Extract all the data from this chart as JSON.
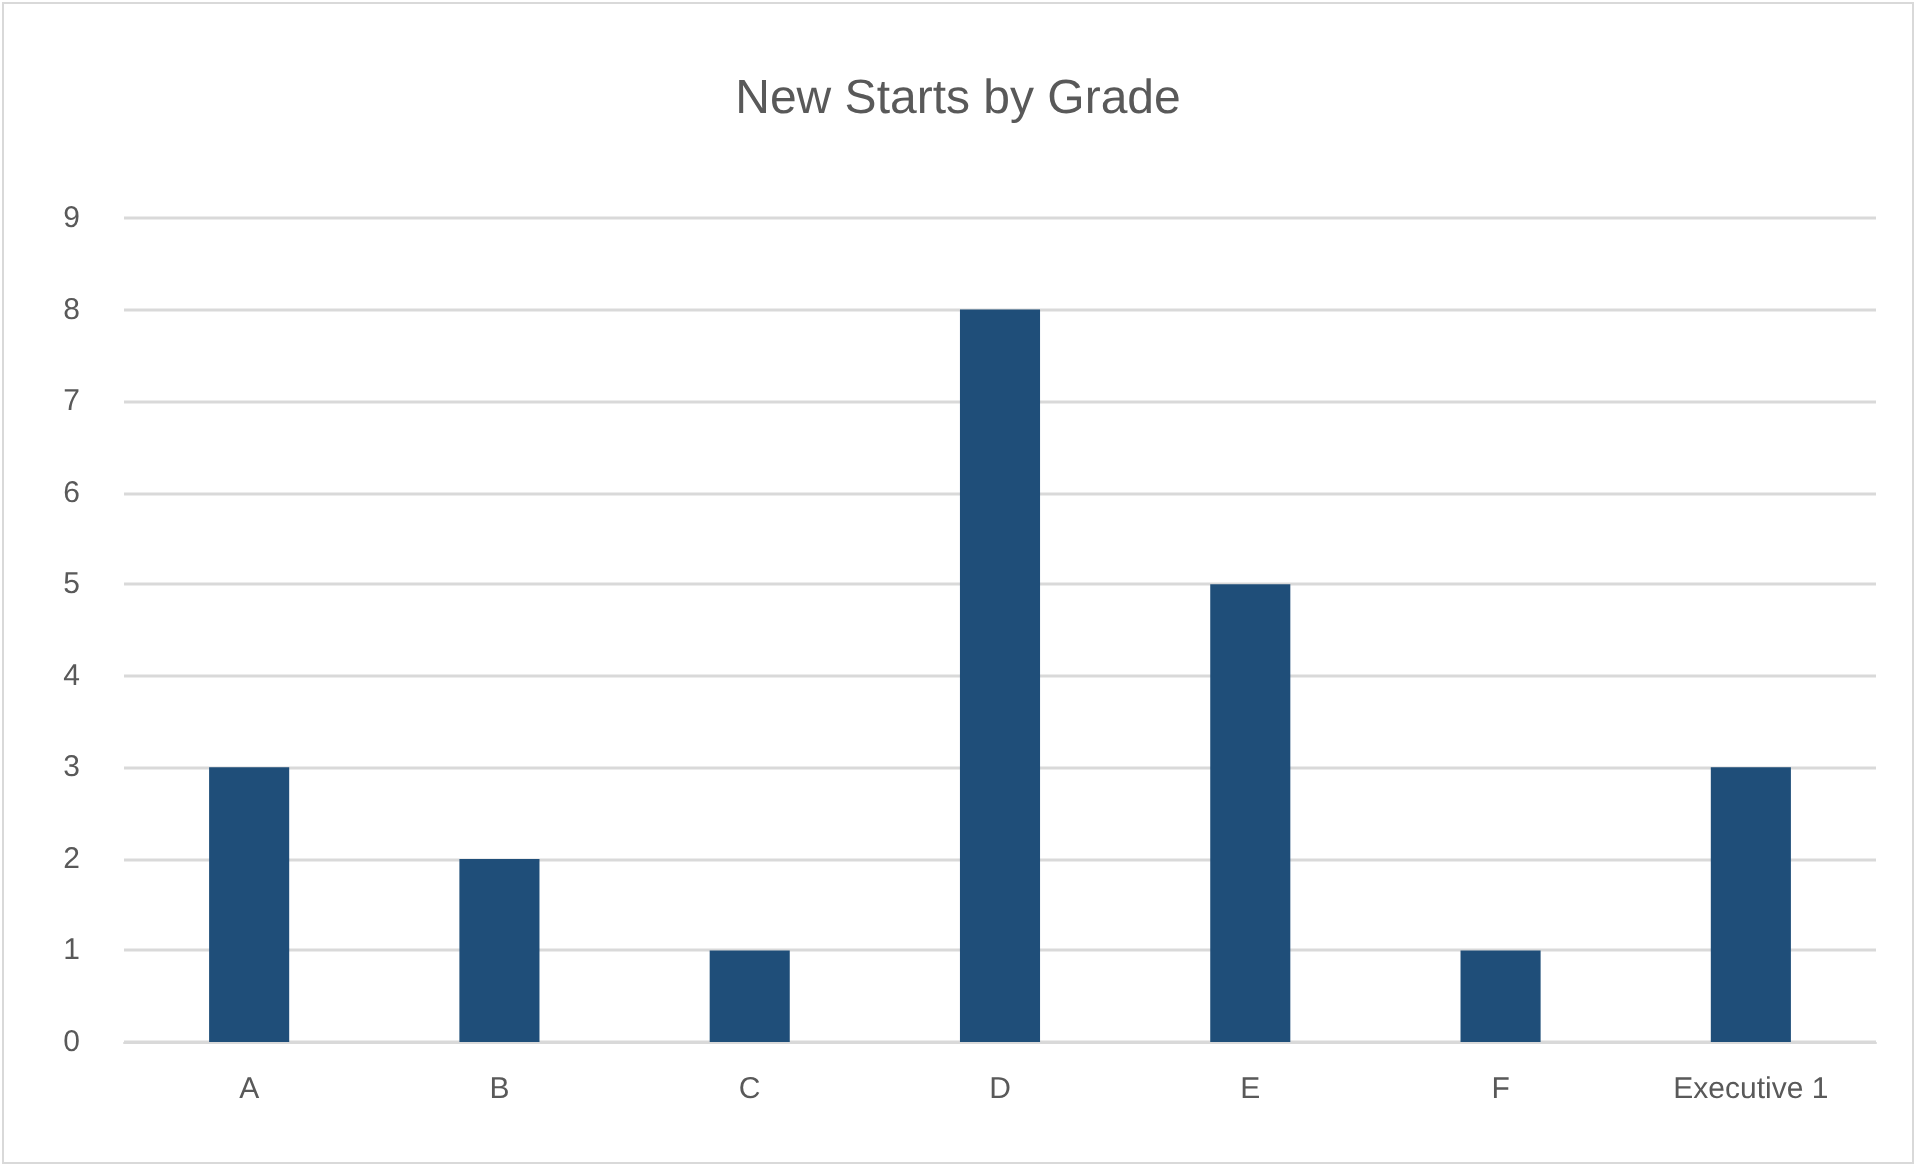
{
  "chart_data": {
    "type": "bar",
    "title": "New Starts by Grade",
    "categories": [
      "A",
      "B",
      "C",
      "D",
      "E",
      "F",
      "Executive 1"
    ],
    "values": [
      3,
      2,
      1,
      8,
      5,
      1,
      3
    ],
    "color": "#1f4e79",
    "ylim": [
      0,
      9
    ],
    "yticks": [
      0,
      1,
      2,
      3,
      4,
      5,
      6,
      7,
      8,
      9
    ],
    "grid": "y"
  }
}
